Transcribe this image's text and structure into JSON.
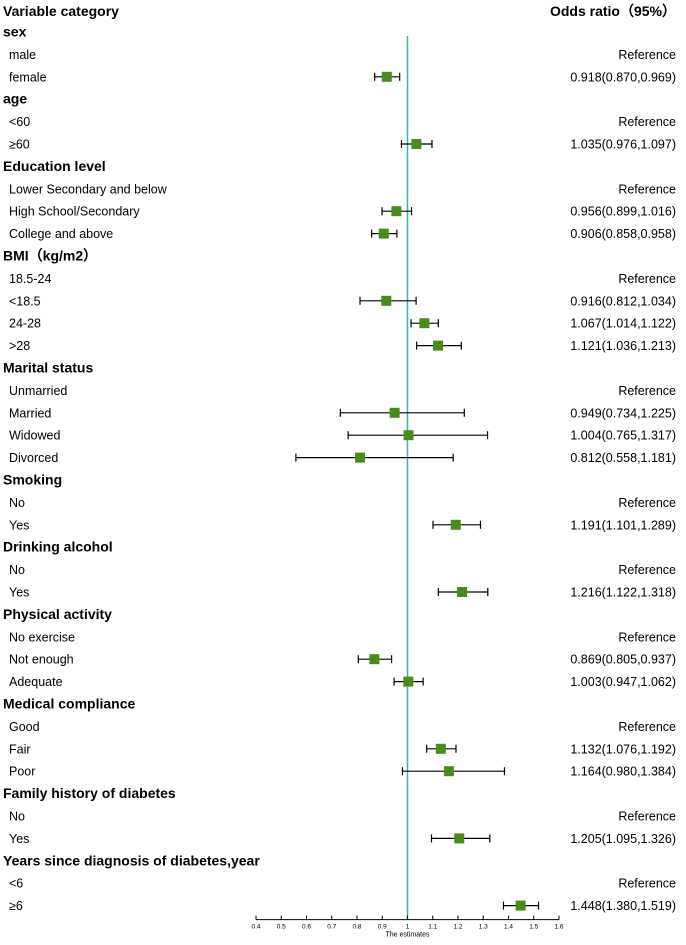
{
  "header": {
    "variable_col": "Variable category",
    "or_col": "Odds ratio（95%）"
  },
  "colors": {
    "marker": "#4a8c1c",
    "reference_line": "#3ab5a8",
    "ci_line": "#000000",
    "text": "#000000"
  },
  "chart_data": {
    "type": "forest",
    "title": "",
    "xlabel": "The estimates",
    "ylabel": "",
    "xlim": [
      0.4,
      1.6
    ],
    "reference_value": 1.0,
    "x_ticks": [
      "0.4",
      "0.5",
      "0.6",
      "0.7",
      "0.8",
      "0.9",
      "1",
      "1.1",
      "1.2",
      "1.3",
      "1.4",
      "1.5",
      "1.6"
    ],
    "rows": [
      {
        "kind": "group",
        "label": "sex"
      },
      {
        "kind": "item",
        "label": "male",
        "or_text": "Reference"
      },
      {
        "kind": "item",
        "label": "female",
        "or_text": "0.918(0.870,0.969)",
        "or": 0.918,
        "lo": 0.87,
        "hi": 0.969
      },
      {
        "kind": "group",
        "label": "age"
      },
      {
        "kind": "item",
        "label": "<60",
        "or_text": "Reference"
      },
      {
        "kind": "item",
        "label": "≥60",
        "or_text": "1.035(0.976,1.097)",
        "or": 1.035,
        "lo": 0.976,
        "hi": 1.097
      },
      {
        "kind": "group",
        "label": "Education level"
      },
      {
        "kind": "item",
        "label": "Lower Secondary and below",
        "or_text": "Reference"
      },
      {
        "kind": "item",
        "label": "High School/Secondary",
        "or_text": "0.956(0.899,1.016)",
        "or": 0.956,
        "lo": 0.899,
        "hi": 1.016
      },
      {
        "kind": "item",
        "label": "College and above",
        "or_text": "0.906(0.858,0.958)",
        "or": 0.906,
        "lo": 0.858,
        "hi": 0.958
      },
      {
        "kind": "group",
        "label": "BMI（kg/m2）"
      },
      {
        "kind": "item",
        "label": "18.5-24",
        "or_text": "Reference"
      },
      {
        "kind": "item",
        "label": "<18.5",
        "or_text": "0.916(0.812,1.034)",
        "or": 0.916,
        "lo": 0.812,
        "hi": 1.034
      },
      {
        "kind": "item",
        "label": "24-28",
        "or_text": "1.067(1.014,1.122)",
        "or": 1.067,
        "lo": 1.014,
        "hi": 1.122
      },
      {
        "kind": "item",
        "label": ">28",
        "or_text": "1.121(1.036,1.213)",
        "or": 1.121,
        "lo": 1.036,
        "hi": 1.213
      },
      {
        "kind": "group",
        "label": "Marital status"
      },
      {
        "kind": "item",
        "label": "Unmarried",
        "or_text": "Reference"
      },
      {
        "kind": "item",
        "label": "Married",
        "or_text": "0.949(0.734,1.225)",
        "or": 0.949,
        "lo": 0.734,
        "hi": 1.225
      },
      {
        "kind": "item",
        "label": "Widowed",
        "or_text": "1.004(0.765,1.317)",
        "or": 1.004,
        "lo": 0.765,
        "hi": 1.317
      },
      {
        "kind": "item",
        "label": "Divorced",
        "or_text": "0.812(0.558,1.181)",
        "or": 0.812,
        "lo": 0.558,
        "hi": 1.181
      },
      {
        "kind": "group",
        "label": "Smoking"
      },
      {
        "kind": "item",
        "label": "No",
        "or_text": "Reference"
      },
      {
        "kind": "item",
        "label": "Yes",
        "or_text": "1.191(1.101,1.289)",
        "or": 1.191,
        "lo": 1.101,
        "hi": 1.289
      },
      {
        "kind": "group",
        "label": "Drinking alcohol"
      },
      {
        "kind": "item",
        "label": "No",
        "or_text": "Reference"
      },
      {
        "kind": "item",
        "label": "Yes",
        "or_text": "1.216(1.122,1.318)",
        "or": 1.216,
        "lo": 1.122,
        "hi": 1.318
      },
      {
        "kind": "group",
        "label": "Physical activity"
      },
      {
        "kind": "item",
        "label": "No exercise",
        "or_text": "Reference"
      },
      {
        "kind": "item",
        "label": "Not enough",
        "or_text": "0.869(0.805,0.937)",
        "or": 0.869,
        "lo": 0.805,
        "hi": 0.937
      },
      {
        "kind": "item",
        "label": "Adequate",
        "or_text": "1.003(0.947,1.062)",
        "or": 1.003,
        "lo": 0.947,
        "hi": 1.062
      },
      {
        "kind": "group",
        "label": "Medical compliance"
      },
      {
        "kind": "item",
        "label": "Good",
        "or_text": "Reference"
      },
      {
        "kind": "item",
        "label": "Fair",
        "or_text": "1.132(1.076,1.192)",
        "or": 1.132,
        "lo": 1.076,
        "hi": 1.192
      },
      {
        "kind": "item",
        "label": "Poor",
        "or_text": "1.164(0.980,1.384)",
        "or": 1.164,
        "lo": 0.98,
        "hi": 1.384
      },
      {
        "kind": "group",
        "label": "Family history of diabetes"
      },
      {
        "kind": "item",
        "label": "No",
        "or_text": "Reference"
      },
      {
        "kind": "item",
        "label": "Yes",
        "or_text": "1.205(1.095,1.326)",
        "or": 1.205,
        "lo": 1.095,
        "hi": 1.326
      },
      {
        "kind": "group",
        "label": "Years since diagnosis of diabetes,year"
      },
      {
        "kind": "item",
        "label": "<6",
        "or_text": "Reference"
      },
      {
        "kind": "item",
        "label": "≥6",
        "or_text": "1.448(1.380,1.519)",
        "or": 1.448,
        "lo": 1.38,
        "hi": 1.519
      }
    ]
  }
}
